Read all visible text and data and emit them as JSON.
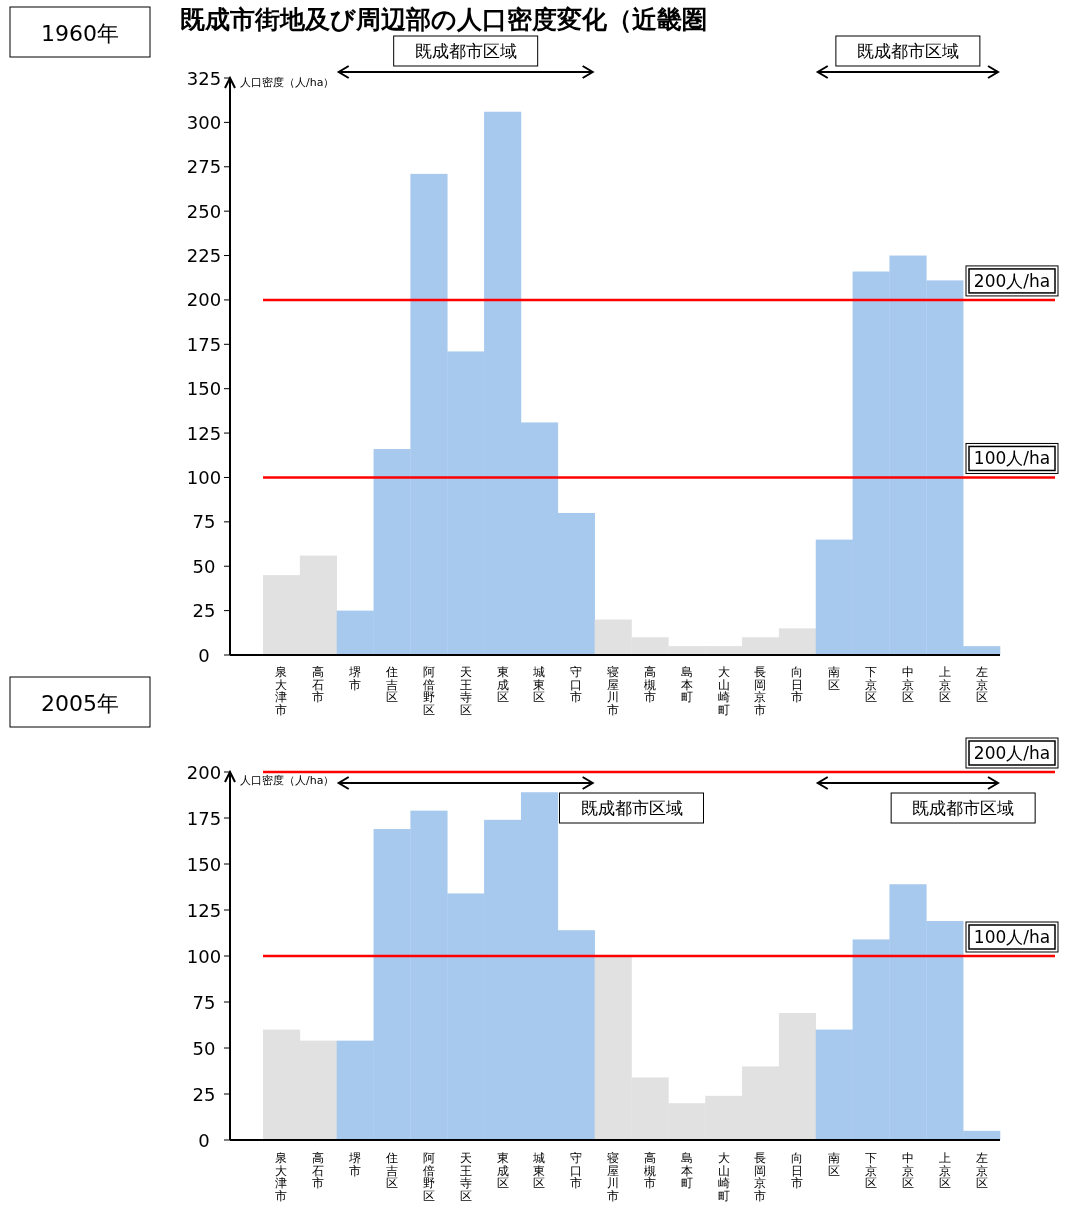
{
  "chart_data": [
    {
      "type": "bar",
      "title": "既成市街地及び周辺部の人口密度変化（近畿圏",
      "subtitle": "1960年",
      "ylabel": "人口密度（人/ha）",
      "categories": [
        "泉大津市",
        "高石市",
        "堺市",
        "住吉区",
        "阿倍野区",
        "天王寺区",
        "東成区",
        "城東区",
        "守口市",
        "寝屋川市",
        "高槻市",
        "島本町",
        "大山崎町",
        "長岡京市",
        "向日市",
        "南区",
        "下京区",
        "中京区",
        "上京区",
        "左京区"
      ],
      "values": [
        45,
        56,
        25,
        116,
        271,
        171,
        306,
        131,
        80,
        20,
        10,
        5,
        5,
        10,
        15,
        65,
        216,
        225,
        211,
        5
      ],
      "colors": [
        "#e1e1e1",
        "#e1e1e1",
        "#a7c9ee",
        "#a7c9ee",
        "#a7c9ee",
        "#a7c9ee",
        "#a7c9ee",
        "#a7c9ee",
        "#a7c9ee",
        "#e1e1e1",
        "#e1e1e1",
        "#e1e1e1",
        "#e1e1e1",
        "#e1e1e1",
        "#e1e1e1",
        "#a7c9ee",
        "#a7c9ee",
        "#a7c9ee",
        "#a7c9ee",
        "#a7c9ee"
      ],
      "ylim": [
        0,
        325
      ],
      "yticks": [
        0,
        25,
        50,
        75,
        100,
        125,
        150,
        175,
        200,
        225,
        250,
        275,
        300,
        325
      ],
      "ref_lines": [
        {
          "axis": "y",
          "value": 200,
          "label": "200人/ha",
          "color": "#ff0000"
        },
        {
          "axis": "y",
          "value": 100,
          "label": "100人/ha",
          "color": "#ff0000"
        }
      ],
      "annotations": [
        "既成都市区域",
        "既成都市区域"
      ]
    },
    {
      "type": "bar",
      "subtitle": "2005年",
      "ylabel": "人口密度（人/ha）",
      "categories": [
        "泉大津市",
        "高石市",
        "堺市",
        "住吉区",
        "阿倍野区",
        "天王寺区",
        "東成区",
        "城東区",
        "守口市",
        "寝屋川市",
        "高槻市",
        "島本町",
        "大山崎町",
        "長岡京市",
        "向日市",
        "南区",
        "下京区",
        "中京区",
        "上京区",
        "左京区"
      ],
      "values": [
        60,
        54,
        54,
        169,
        179,
        134,
        174,
        189,
        114,
        100,
        34,
        20,
        24,
        40,
        69,
        60,
        109,
        139,
        119,
        5
      ],
      "colors": [
        "#e1e1e1",
        "#e1e1e1",
        "#a7c9ee",
        "#a7c9ee",
        "#a7c9ee",
        "#a7c9ee",
        "#a7c9ee",
        "#a7c9ee",
        "#a7c9ee",
        "#e1e1e1",
        "#e1e1e1",
        "#e1e1e1",
        "#e1e1e1",
        "#e1e1e1",
        "#e1e1e1",
        "#a7c9ee",
        "#a7c9ee",
        "#a7c9ee",
        "#a7c9ee",
        "#a7c9ee"
      ],
      "ylim": [
        0,
        200
      ],
      "yticks": [
        0,
        25,
        50,
        75,
        100,
        125,
        150,
        175,
        200
      ],
      "ref_lines": [
        {
          "axis": "y",
          "value": 200,
          "label": "200人/ha",
          "color": "#ff0000"
        },
        {
          "axis": "y",
          "value": 100,
          "label": "100人/ha",
          "color": "#ff0000"
        }
      ],
      "annotations": [
        "既成都市区域",
        "既成都市区域"
      ]
    }
  ]
}
